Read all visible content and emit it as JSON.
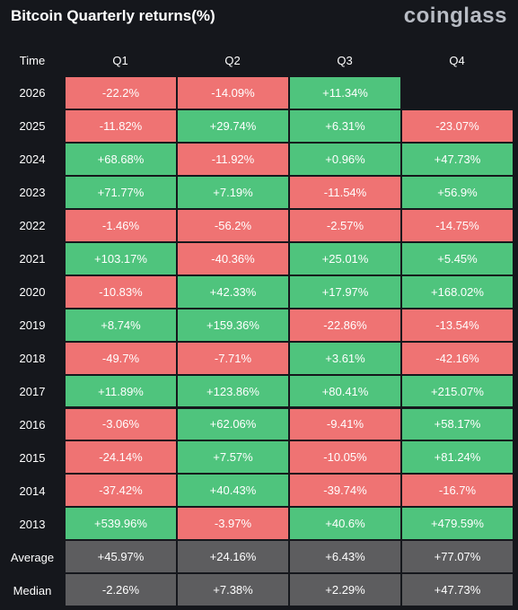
{
  "header": {
    "title": "Bitcoin Quarterly returns(%)",
    "brand": "coinglass"
  },
  "table": {
    "columns": [
      "Time",
      "Q1",
      "Q2",
      "Q3",
      "Q4"
    ],
    "rows": [
      {
        "label": "2026",
        "cells": [
          "-22.2%",
          "-14.09%",
          "+11.34%",
          null
        ]
      },
      {
        "label": "2025",
        "cells": [
          "-11.82%",
          "+29.74%",
          "+6.31%",
          "-23.07%"
        ]
      },
      {
        "label": "2024",
        "cells": [
          "+68.68%",
          "-11.92%",
          "+0.96%",
          "+47.73%"
        ]
      },
      {
        "label": "2023",
        "cells": [
          "+71.77%",
          "+7.19%",
          "-11.54%",
          "+56.9%"
        ]
      },
      {
        "label": "2022",
        "cells": [
          "-1.46%",
          "-56.2%",
          "-2.57%",
          "-14.75%"
        ]
      },
      {
        "label": "2021",
        "cells": [
          "+103.17%",
          "-40.36%",
          "+25.01%",
          "+5.45%"
        ]
      },
      {
        "label": "2020",
        "cells": [
          "-10.83%",
          "+42.33%",
          "+17.97%",
          "+168.02%"
        ]
      },
      {
        "label": "2019",
        "cells": [
          "+8.74%",
          "+159.36%",
          "-22.86%",
          "-13.54%"
        ]
      },
      {
        "label": "2018",
        "cells": [
          "-49.7%",
          "-7.71%",
          "+3.61%",
          "-42.16%"
        ]
      },
      {
        "label": "2017",
        "cells": [
          "+11.89%",
          "+123.86%",
          "+80.41%",
          "+215.07%"
        ]
      },
      {
        "label": "2016",
        "cells": [
          "-3.06%",
          "+62.06%",
          "-9.41%",
          "+58.17%"
        ]
      },
      {
        "label": "2015",
        "cells": [
          "-24.14%",
          "+7.57%",
          "-10.05%",
          "+81.24%"
        ]
      },
      {
        "label": "2014",
        "cells": [
          "-37.42%",
          "+40.43%",
          "-39.74%",
          "-16.7%"
        ]
      },
      {
        "label": "2013",
        "cells": [
          "+539.96%",
          "-3.97%",
          "+40.6%",
          "+479.59%"
        ]
      }
    ],
    "summary": [
      {
        "label": "Average",
        "cells": [
          "+45.97%",
          "+24.16%",
          "+6.43%",
          "+77.07%"
        ]
      },
      {
        "label": "Median",
        "cells": [
          "-2.26%",
          "+7.38%",
          "+2.29%",
          "+47.73%"
        ]
      }
    ]
  }
}
